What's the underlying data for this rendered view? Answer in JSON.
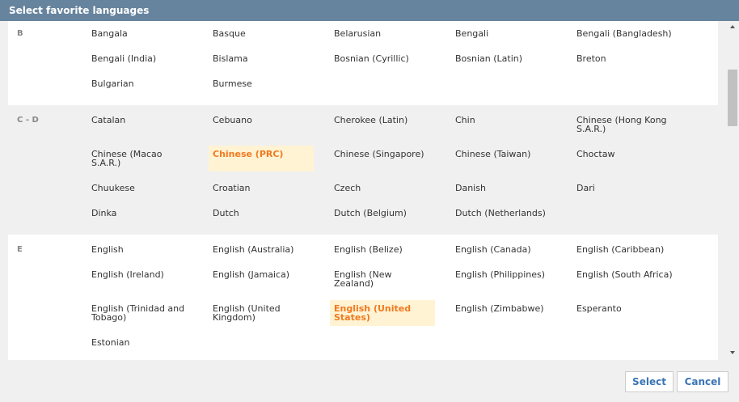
{
  "header": {
    "title": "Select favorite languages"
  },
  "groups": [
    {
      "letter": "B",
      "items": [
        {
          "label": "Bangala",
          "selected": false
        },
        {
          "label": "Basque",
          "selected": false
        },
        {
          "label": "Belarusian",
          "selected": false
        },
        {
          "label": "Bengali",
          "selected": false
        },
        {
          "label": "Bengali (Bangladesh)",
          "selected": false
        },
        {
          "label": "Bengali (India)",
          "selected": false
        },
        {
          "label": "Bislama",
          "selected": false
        },
        {
          "label": "Bosnian (Cyrillic)",
          "selected": false
        },
        {
          "label": "Bosnian (Latin)",
          "selected": false
        },
        {
          "label": "Breton",
          "selected": false
        },
        {
          "label": "Bulgarian",
          "selected": false
        },
        {
          "label": "Burmese",
          "selected": false
        }
      ]
    },
    {
      "letter": "C - D",
      "items": [
        {
          "label": "Catalan",
          "selected": false
        },
        {
          "label": "Cebuano",
          "selected": false
        },
        {
          "label": "Cherokee (Latin)",
          "selected": false
        },
        {
          "label": "Chin",
          "selected": false
        },
        {
          "label": "Chinese (Hong Kong S.A.R.)",
          "selected": false
        },
        {
          "label": "Chinese (Macao S.A.R.)",
          "selected": false
        },
        {
          "label": "Chinese (PRC)",
          "selected": true
        },
        {
          "label": "Chinese (Singapore)",
          "selected": false
        },
        {
          "label": "Chinese (Taiwan)",
          "selected": false
        },
        {
          "label": "Choctaw",
          "selected": false
        },
        {
          "label": "Chuukese",
          "selected": false
        },
        {
          "label": "Croatian",
          "selected": false
        },
        {
          "label": "Czech",
          "selected": false
        },
        {
          "label": "Danish",
          "selected": false
        },
        {
          "label": "Dari",
          "selected": false
        },
        {
          "label": "Dinka",
          "selected": false
        },
        {
          "label": "Dutch",
          "selected": false
        },
        {
          "label": "Dutch (Belgium)",
          "selected": false
        },
        {
          "label": "Dutch (Netherlands)",
          "selected": false
        }
      ]
    },
    {
      "letter": "E",
      "items": [
        {
          "label": "English",
          "selected": false
        },
        {
          "label": "English (Australia)",
          "selected": false
        },
        {
          "label": "English (Belize)",
          "selected": false
        },
        {
          "label": "English (Canada)",
          "selected": false
        },
        {
          "label": "English (Caribbean)",
          "selected": false
        },
        {
          "label": "English (Ireland)",
          "selected": false
        },
        {
          "label": "English (Jamaica)",
          "selected": false
        },
        {
          "label": "English (New Zealand)",
          "selected": false
        },
        {
          "label": "English (Philippines)",
          "selected": false
        },
        {
          "label": "English (South Africa)",
          "selected": false
        },
        {
          "label": "English (Trinidad and Tobago)",
          "selected": false
        },
        {
          "label": "English (United Kingdom)",
          "selected": false
        },
        {
          "label": "English (United States)",
          "selected": true
        },
        {
          "label": "English (Zimbabwe)",
          "selected": false
        },
        {
          "label": "Esperanto",
          "selected": false
        },
        {
          "label": "Estonian",
          "selected": false
        }
      ]
    }
  ],
  "buttons": {
    "select": "Select",
    "cancel": "Cancel"
  }
}
